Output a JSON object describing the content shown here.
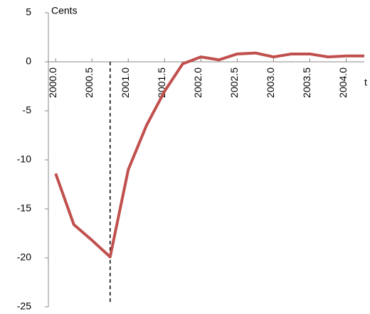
{
  "chart_data": {
    "type": "line",
    "y_label": "Cents",
    "x_label": "t",
    "x": [
      2000.0,
      2000.25,
      2000.5,
      2000.75,
      2001.0,
      2001.25,
      2001.5,
      2001.75,
      2002.0,
      2002.25,
      2002.5,
      2002.75,
      2003.0,
      2003.25,
      2003.5,
      2003.75,
      2004.0,
      2004.25
    ],
    "series": [
      {
        "color": "#c0504d",
        "values": [
          -11.4,
          -16.6,
          -18.2,
          -19.9,
          -11,
          -6.5,
          -3,
          -0.2,
          0.5,
          0.2,
          0.8,
          0.9,
          0.5,
          0.8,
          0.8,
          0.5,
          0.6,
          0.6
        ]
      }
    ],
    "xlim": [
      1999.9,
      2004.25
    ],
    "xticks": [
      {
        "value": 2000.0,
        "label": "2000.0"
      },
      2000.5,
      {
        "value": 2001.0,
        "label": "2001.0"
      },
      2001.5,
      {
        "value": 2002.0,
        "label": "2002.0"
      },
      2002.5,
      {
        "value": 2003.0,
        "label": "2003.0"
      },
      2003.5,
      {
        "value": 2004.0,
        "label": "2004.0"
      }
    ],
    "ylim": [
      -25,
      5
    ],
    "yticks": [
      5,
      0,
      -5,
      -10,
      -15,
      -20,
      -25
    ],
    "vline": 2000.75
  }
}
